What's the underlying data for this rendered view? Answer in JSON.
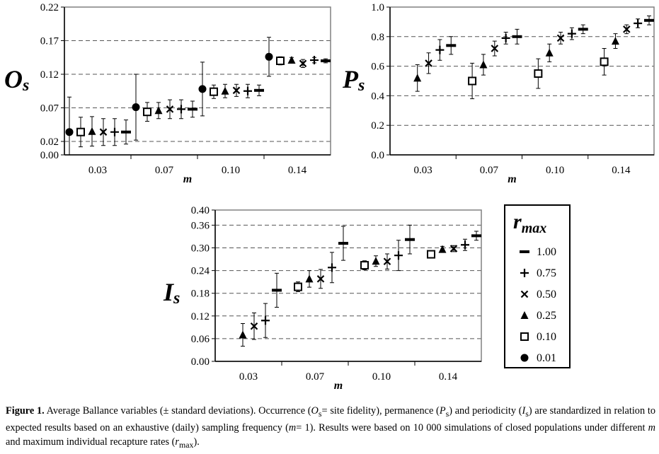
{
  "chart_data": [
    {
      "id": "os",
      "type": "scatter",
      "panel_label": "Os",
      "xlabel": "m",
      "categories": [
        "0.03",
        "0.07",
        "0.10",
        "0.14"
      ],
      "yticks": [
        "0.00",
        "0.02",
        "0.07",
        "0.12",
        "0.17",
        "0.22"
      ],
      "ylim": [
        0,
        0.22
      ],
      "grid": "horizontal dashed",
      "series": [
        {
          "name": "0.01",
          "marker": "circle",
          "values": [
            0.034,
            0.071,
            0.098,
            0.146
          ],
          "sd": [
            0.052,
            0.049,
            0.04,
            0.029
          ]
        },
        {
          "name": "0.10",
          "marker": "square",
          "values": [
            0.034,
            0.064,
            0.094,
            0.14
          ],
          "sd": [
            0.022,
            0.014,
            0.01,
            0.006
          ]
        },
        {
          "name": "0.25",
          "marker": "triangle",
          "values": [
            0.035,
            0.066,
            0.095,
            0.141
          ],
          "sd": [
            0.022,
            0.012,
            0.01,
            0.004
          ]
        },
        {
          "name": "0.50",
          "marker": "x",
          "values": [
            0.034,
            0.068,
            0.096,
            0.136
          ],
          "sd": [
            0.02,
            0.014,
            0.009,
            0.006
          ]
        },
        {
          "name": "0.75",
          "marker": "plus",
          "values": [
            0.034,
            0.068,
            0.095,
            0.141
          ],
          "sd": [
            0.02,
            0.014,
            0.01,
            0.004
          ]
        },
        {
          "name": "1.00",
          "marker": "dash",
          "values": [
            0.034,
            0.068,
            0.096,
            0.14
          ],
          "sd": [
            0.018,
            0.012,
            0.008,
            0.003
          ]
        }
      ]
    },
    {
      "id": "ps",
      "type": "scatter",
      "panel_label": "Ps",
      "xlabel": "m",
      "categories": [
        "0.03",
        "0.07",
        "0.10",
        "0.14"
      ],
      "yticks": [
        "0.0",
        "0.2",
        "0.4",
        "0.6",
        "0.8",
        "1.0"
      ],
      "ylim": [
        0,
        1.0
      ],
      "grid": "horizontal dashed",
      "series": [
        {
          "name": "0.10",
          "marker": "square",
          "values": [
            null,
            0.5,
            0.55,
            0.63
          ],
          "sd": [
            null,
            0.12,
            0.1,
            0.09
          ]
        },
        {
          "name": "0.25",
          "marker": "triangle",
          "values": [
            0.52,
            0.61,
            0.69,
            0.77
          ],
          "sd": [
            0.09,
            0.07,
            0.06,
            0.05
          ]
        },
        {
          "name": "0.50",
          "marker": "x",
          "values": [
            0.62,
            0.72,
            0.79,
            0.85
          ],
          "sd": [
            0.07,
            0.05,
            0.04,
            0.03
          ]
        },
        {
          "name": "0.75",
          "marker": "plus",
          "values": [
            0.71,
            0.79,
            0.82,
            0.89
          ],
          "sd": [
            0.07,
            0.04,
            0.04,
            0.03
          ]
        },
        {
          "name": "1.00",
          "marker": "dash",
          "values": [
            0.74,
            0.8,
            0.85,
            0.91
          ],
          "sd": [
            0.06,
            0.05,
            0.03,
            0.03
          ]
        }
      ]
    },
    {
      "id": "is",
      "type": "scatter",
      "panel_label": "Is",
      "xlabel": "m",
      "categories": [
        "0.03",
        "0.07",
        "0.10",
        "0.14"
      ],
      "yticks": [
        "0.00",
        "0.06",
        "0.12",
        "0.18",
        "0.24",
        "0.30",
        "0.36",
        "0.40"
      ],
      "ylim": [
        0,
        0.4
      ],
      "grid": "horizontal dashed",
      "series": [
        {
          "name": "0.10",
          "marker": "square",
          "values": [
            null,
            0.197,
            0.254,
            0.283
          ],
          "sd": [
            null,
            0.013,
            0.012,
            0.008
          ]
        },
        {
          "name": "0.25",
          "marker": "triangle",
          "values": [
            0.07,
            0.218,
            0.265,
            0.296
          ],
          "sd": [
            0.03,
            0.022,
            0.014,
            0.008
          ]
        },
        {
          "name": "0.50",
          "marker": "x",
          "values": [
            0.093,
            0.218,
            0.264,
            0.298
          ],
          "sd": [
            0.035,
            0.025,
            0.02,
            0.008
          ]
        },
        {
          "name": "0.75",
          "marker": "plus",
          "values": [
            0.108,
            0.248,
            0.28,
            0.308
          ],
          "sd": [
            0.045,
            0.04,
            0.04,
            0.015
          ]
        },
        {
          "name": "1.00",
          "marker": "dash",
          "values": [
            0.188,
            0.312,
            0.322,
            0.332
          ],
          "sd": [
            0.045,
            0.045,
            0.038,
            0.012
          ]
        }
      ]
    }
  ],
  "legend": {
    "title_main": "r",
    "title_sub": "max",
    "items": [
      {
        "marker": "dash",
        "label": "1.00"
      },
      {
        "marker": "plus",
        "label": "0.75"
      },
      {
        "marker": "x",
        "label": "0.50"
      },
      {
        "marker": "triangle",
        "label": "0.25"
      },
      {
        "marker": "square",
        "label": "0.10"
      },
      {
        "marker": "circle",
        "label": "0.01"
      }
    ]
  },
  "caption": {
    "label": "Figure 1.",
    "text_1": " Average Ballance variables (± standard deviations). Occurrence (",
    "os_main": "O",
    "os_sub": "s",
    "text_2": "= site fidelity), permanence (",
    "ps_main": "P",
    "ps_sub": "s",
    "text_3": ") and periodicity (",
    "is_main": "I",
    "is_sub": "s",
    "text_4": ") are standardized in relation to expected results based on an exhaustive (daily) sampling frequency (",
    "m_main": "m",
    "text_5": "= 1). Results were based on 10 000 simulations of closed populations under different ",
    "m2_main": "m",
    "text_6": " and maximum individual recapture rates (",
    "r_main": "r",
    "r_sub": "max",
    "text_7": ")."
  }
}
